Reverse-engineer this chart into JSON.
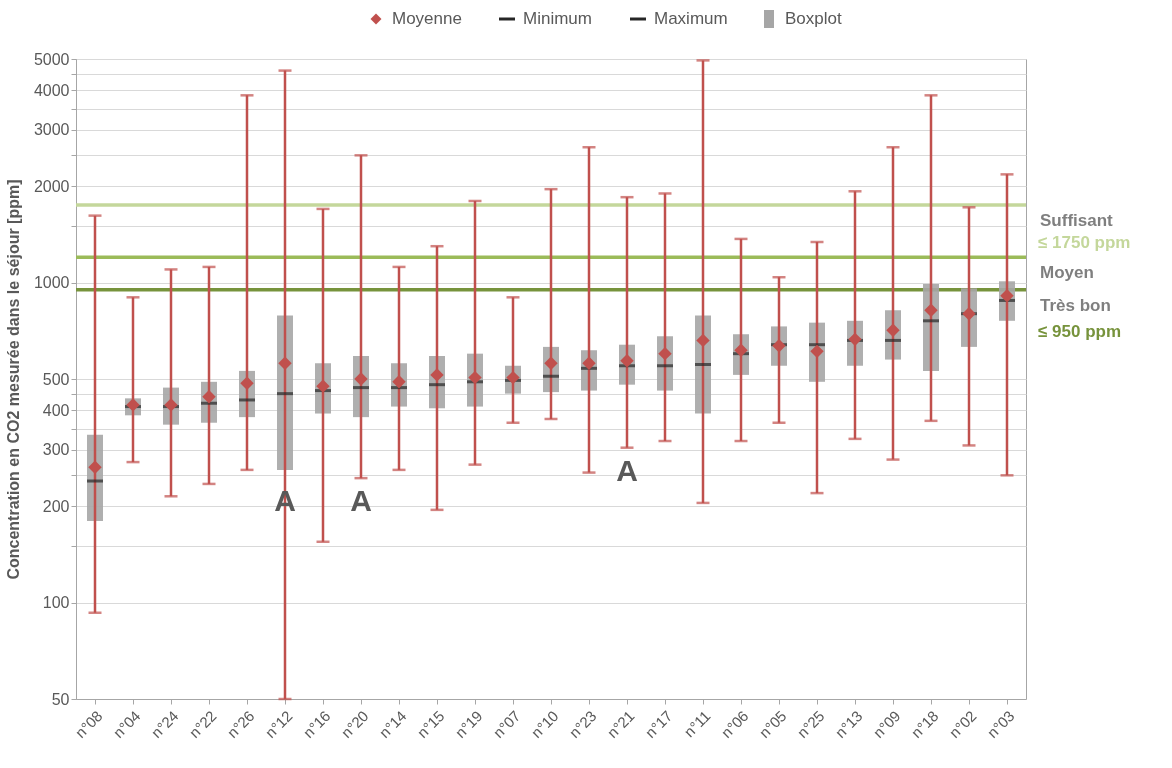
{
  "chart_data": {
    "type": "box",
    "ylabel": "Concentration en CO2  mesurée dans le séjour [ppm]",
    "categories": [
      "n°08",
      "n°04",
      "n°24",
      "n°22",
      "n°26",
      "n°12",
      "n°16",
      "n°20",
      "n°14",
      "n°15",
      "n°19",
      "n°07",
      "n°10",
      "n°23",
      "n°21",
      "n°17",
      "n°11",
      "n°06",
      "n°05",
      "n°25",
      "n°13",
      "n°09",
      "n°18",
      "n°02",
      "n°03"
    ],
    "series": [
      {
        "name": "Moyenne",
        "type": "scatter",
        "marker": "diamond",
        "color": "#c0504d",
        "values": [
          265,
          415,
          415,
          440,
          485,
          560,
          475,
          500,
          490,
          515,
          505,
          505,
          560,
          560,
          570,
          600,
          660,
          615,
          635,
          610,
          665,
          710,
          820,
          800,
          910
        ]
      },
      {
        "name": "Boxplot",
        "color": "#a6a6a6",
        "boxes": [
          {
            "low": 93,
            "q1": 180,
            "median": 240,
            "q3": 335,
            "high": 1620
          },
          {
            "low": 275,
            "q1": 385,
            "median": 410,
            "q3": 435,
            "high": 900
          },
          {
            "low": 215,
            "q1": 360,
            "median": 410,
            "q3": 470,
            "high": 1100
          },
          {
            "low": 235,
            "q1": 365,
            "median": 420,
            "q3": 490,
            "high": 1120
          },
          {
            "low": 260,
            "q1": 380,
            "median": 430,
            "q3": 530,
            "high": 3850
          },
          {
            "low": 50,
            "q1": 260,
            "median": 450,
            "q3": 790,
            "high": 4600
          },
          {
            "low": 155,
            "q1": 390,
            "median": 460,
            "q3": 560,
            "high": 1700
          },
          {
            "low": 245,
            "q1": 380,
            "median": 470,
            "q3": 590,
            "high": 2500
          },
          {
            "low": 260,
            "q1": 410,
            "median": 470,
            "q3": 560,
            "high": 1120
          },
          {
            "low": 195,
            "q1": 405,
            "median": 480,
            "q3": 590,
            "high": 1300
          },
          {
            "low": 270,
            "q1": 410,
            "median": 490,
            "q3": 600,
            "high": 1800
          },
          {
            "low": 365,
            "q1": 450,
            "median": 495,
            "q3": 550,
            "high": 900
          },
          {
            "low": 375,
            "q1": 455,
            "median": 510,
            "q3": 630,
            "high": 1960
          },
          {
            "low": 255,
            "q1": 460,
            "median": 540,
            "q3": 615,
            "high": 2650
          },
          {
            "low": 305,
            "q1": 480,
            "median": 550,
            "q3": 640,
            "high": 1850
          },
          {
            "low": 320,
            "q1": 460,
            "median": 550,
            "q3": 680,
            "high": 1900
          },
          {
            "low": 205,
            "q1": 390,
            "median": 555,
            "q3": 790,
            "high": 4950
          },
          {
            "low": 320,
            "q1": 515,
            "median": 600,
            "q3": 690,
            "high": 1370
          },
          {
            "low": 365,
            "q1": 550,
            "median": 640,
            "q3": 730,
            "high": 1040
          },
          {
            "low": 220,
            "q1": 490,
            "median": 640,
            "q3": 750,
            "high": 1340
          },
          {
            "low": 325,
            "q1": 550,
            "median": 660,
            "q3": 760,
            "high": 1930
          },
          {
            "low": 280,
            "q1": 575,
            "median": 660,
            "q3": 820,
            "high": 2650
          },
          {
            "low": 370,
            "q1": 530,
            "median": 760,
            "q3": 990,
            "high": 3850
          },
          {
            "low": 310,
            "q1": 630,
            "median": 800,
            "q3": 960,
            "high": 1720
          },
          {
            "low": 250,
            "q1": 760,
            "median": 880,
            "q3": 1010,
            "high": 2180
          }
        ]
      }
    ],
    "log": true,
    "ylim": [
      50,
      5000
    ],
    "yticks": [
      50,
      100,
      {
        "value": 150,
        "label": null
      },
      200,
      {
        "value": 250,
        "label": null
      },
      300,
      {
        "value": 350,
        "label": null
      },
      400,
      {
        "value": 450,
        "label": null
      },
      500,
      1000,
      {
        "value": 1500,
        "label": null
      },
      2000,
      {
        "value": 2500,
        "label": null
      },
      3000,
      {
        "value": 3500,
        "label": null
      },
      4000,
      {
        "value": 4500,
        "label": null
      },
      5000
    ],
    "grid": "y",
    "legend": "top",
    "ref_lines": [
      {
        "axis": "y",
        "value": 1750,
        "color": "#c4d79b",
        "label": "Suffisant"
      },
      {
        "axis": "y",
        "value": 1200,
        "color": "#9bbb59",
        "label": "Moyen"
      },
      {
        "axis": "y",
        "value": 950,
        "color": "#77933c",
        "label": "Très bon"
      }
    ],
    "annotations": [
      "A",
      "A",
      "A",
      "≤ 1750 ppm",
      "≤ 950 ppm",
      "Minimum",
      "Maximum"
    ]
  }
}
